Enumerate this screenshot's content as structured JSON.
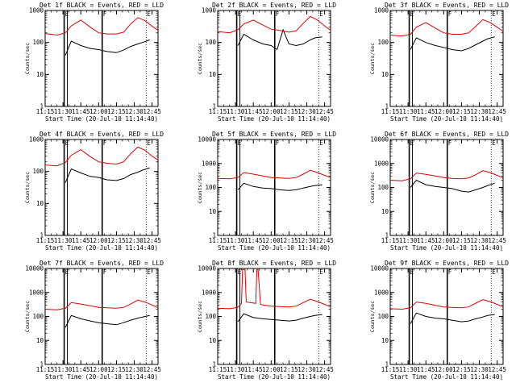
{
  "figure": {
    "x_tick_labels": [
      "11:15",
      "11:30",
      "11:45",
      "12:00",
      "12:15",
      "12:30",
      "12:45"
    ],
    "y_label": "Counts/sec",
    "x_label": "Start Time (20-Jul-10 11:14:40)",
    "series_colors": {
      "events": "#000000",
      "lld": "#e00000"
    },
    "marker_color": "#000000"
  },
  "chart_data": [
    {
      "type": "line",
      "title": "Det 1f BLACK = Events, RED = LLD",
      "xlabel": "Start Time (20-Jul-10 11:14:40)",
      "ylabel": "Counts/sec",
      "yscale": "log",
      "ylim": [
        1,
        1000
      ],
      "y_tick_labels": [
        "1",
        "10",
        "100",
        "1000"
      ],
      "xlim_minutes": [
        0,
        95
      ],
      "markers": [
        {
          "label": "E",
          "minute": 16
        },
        {
          "label": "F",
          "minute": 48
        },
        {
          "label": "E",
          "minute": 85
        }
      ],
      "series": [
        {
          "name": "BLACK = Events",
          "color": "#000000",
          "x": [
            17,
            22,
            30,
            38,
            45,
            52,
            60,
            66,
            72,
            78,
            82,
            88
          ],
          "y": [
            40,
            110,
            80,
            65,
            60,
            52,
            48,
            58,
            75,
            90,
            100,
            120
          ]
        },
        {
          "name": "RED = LLD",
          "color": "#e00000",
          "x": [
            0,
            10,
            17,
            22,
            30,
            38,
            45,
            52,
            60,
            66,
            72,
            78,
            84,
            90,
            95
          ],
          "y": [
            190,
            170,
            200,
            330,
            500,
            300,
            200,
            185,
            185,
            210,
            380,
            600,
            480,
            320,
            240
          ]
        }
      ]
    },
    {
      "type": "line",
      "title": "Det 2f BLACK = Events, RED = LLD",
      "xlabel": "Start Time (20-Jul-10 11:14:40)",
      "ylabel": "Counts/sec",
      "yscale": "log",
      "ylim": [
        1,
        1000
      ],
      "y_tick_labels": [
        "1",
        "10",
        "100",
        "1000"
      ],
      "xlim_minutes": [
        0,
        95
      ],
      "markers": [
        {
          "label": "E",
          "minute": 16
        },
        {
          "label": "F",
          "minute": 48
        },
        {
          "label": "E",
          "minute": 85
        }
      ],
      "series": [
        {
          "name": "BLACK = Events",
          "color": "#000000",
          "x": [
            17,
            22,
            30,
            38,
            45,
            50,
            55,
            60,
            66,
            72,
            78,
            82,
            88
          ],
          "y": [
            80,
            180,
            120,
            90,
            80,
            60,
            250,
            90,
            80,
            90,
            120,
            140,
            150
          ]
        },
        {
          "name": "RED = LLD",
          "color": "#e00000",
          "x": [
            0,
            10,
            17,
            22,
            30,
            38,
            45,
            52,
            60,
            66,
            72,
            78,
            84,
            90,
            95
          ],
          "y": [
            220,
            200,
            250,
            380,
            500,
            350,
            260,
            240,
            210,
            230,
            400,
            650,
            500,
            330,
            240
          ]
        }
      ]
    },
    {
      "type": "line",
      "title": "Det 3f BLACK = Events, RED = LLD",
      "xlabel": "Start Time (20-Jul-10 11:14:40)",
      "ylabel": "Counts/sec",
      "yscale": "log",
      "ylim": [
        1,
        1000
      ],
      "y_tick_labels": [
        "1",
        "10",
        "100",
        "1000"
      ],
      "xlim_minutes": [
        0,
        95
      ],
      "markers": [
        {
          "label": "E",
          "minute": 16
        },
        {
          "label": "F",
          "minute": 48
        },
        {
          "label": "E",
          "minute": 85
        }
      ],
      "series": [
        {
          "name": "BLACK = Events",
          "color": "#000000",
          "x": [
            17,
            22,
            30,
            38,
            45,
            52,
            60,
            66,
            72,
            78,
            82,
            88
          ],
          "y": [
            60,
            140,
            100,
            80,
            70,
            60,
            55,
            65,
            85,
            110,
            130,
            150
          ]
        },
        {
          "name": "RED = LLD",
          "color": "#e00000",
          "x": [
            0,
            10,
            17,
            22,
            30,
            38,
            45,
            52,
            60,
            66,
            72,
            78,
            84,
            90,
            95
          ],
          "y": [
            170,
            160,
            180,
            300,
            420,
            280,
            200,
            180,
            180,
            200,
            320,
            520,
            420,
            300,
            220
          ]
        }
      ]
    },
    {
      "type": "line",
      "title": "Det 4f BLACK = Events, RED = LLD",
      "xlabel": "Start Time (20-Jul-10 11:14:40)",
      "ylabel": "Counts/sec",
      "yscale": "log",
      "ylim": [
        1,
        1000
      ],
      "y_tick_labels": [
        "1",
        "10",
        "100",
        "1000"
      ],
      "xlim_minutes": [
        0,
        95
      ],
      "markers": [
        {
          "label": "E",
          "minute": 16
        },
        {
          "label": "F",
          "minute": 48
        },
        {
          "label": "E",
          "minute": 85
        }
      ],
      "series": [
        {
          "name": "BLACK = Events",
          "color": "#000000",
          "x": [
            17,
            22,
            30,
            38,
            45,
            52,
            60,
            66,
            72,
            78,
            82,
            88
          ],
          "y": [
            45,
            120,
            90,
            70,
            65,
            55,
            52,
            60,
            80,
            95,
            110,
            130
          ]
        },
        {
          "name": "RED = LLD",
          "color": "#e00000",
          "x": [
            0,
            10,
            17,
            22,
            30,
            38,
            45,
            52,
            60,
            66,
            72,
            78,
            84,
            90,
            95
          ],
          "y": [
            160,
            150,
            190,
            320,
            480,
            290,
            200,
            180,
            170,
            200,
            360,
            580,
            460,
            300,
            230
          ]
        }
      ]
    },
    {
      "type": "line",
      "title": "Det 5f BLACK = Events, RED = LLD",
      "xlabel": "Start Time (20-Jul-10 11:14:40)",
      "ylabel": "Counts/sec",
      "yscale": "log",
      "ylim": [
        1,
        10000
      ],
      "y_tick_labels": [
        "1",
        "10",
        "100",
        "1000",
        "10000"
      ],
      "xlim_minutes": [
        0,
        95
      ],
      "markers": [
        {
          "label": "E",
          "minute": 16
        },
        {
          "label": "F",
          "minute": 48
        },
        {
          "label": "E",
          "minute": 85
        }
      ],
      "series": [
        {
          "name": "BLACK = Events",
          "color": "#000000",
          "x": [
            17,
            22,
            30,
            38,
            45,
            52,
            60,
            66,
            72,
            78,
            82,
            88
          ],
          "y": [
            80,
            150,
            110,
            95,
            90,
            80,
            75,
            80,
            95,
            110,
            120,
            130
          ]
        },
        {
          "name": "RED = LLD",
          "color": "#e00000",
          "x": [
            0,
            10,
            17,
            22,
            30,
            38,
            45,
            52,
            60,
            66,
            72,
            78,
            84,
            90,
            95
          ],
          "y": [
            240,
            230,
            260,
            420,
            360,
            300,
            260,
            250,
            240,
            260,
            360,
            520,
            420,
            320,
            260
          ]
        }
      ]
    },
    {
      "type": "line",
      "title": "Det 6f BLACK = Events, RED = LLD",
      "xlabel": "Start Time (20-Jul-10 11:14:40)",
      "ylabel": "Counts/sec",
      "yscale": "log",
      "ylim": [
        1,
        10000
      ],
      "y_tick_labels": [
        "1",
        "10",
        "100",
        "1000",
        "10000"
      ],
      "xlim_minutes": [
        0,
        95
      ],
      "markers": [
        {
          "label": "E",
          "minute": 16
        },
        {
          "label": "F",
          "minute": 48
        },
        {
          "label": "E",
          "minute": 85
        }
      ],
      "series": [
        {
          "name": "BLACK = Events",
          "color": "#000000",
          "x": [
            17,
            22,
            30,
            38,
            45,
            52,
            60,
            66,
            72,
            78,
            82,
            88
          ],
          "y": [
            100,
            200,
            130,
            110,
            100,
            90,
            70,
            65,
            80,
            100,
            120,
            150
          ]
        },
        {
          "name": "RED = LLD",
          "color": "#e00000",
          "x": [
            0,
            10,
            17,
            22,
            30,
            38,
            45,
            52,
            60,
            66,
            72,
            78,
            84,
            90,
            95
          ],
          "y": [
            200,
            190,
            230,
            400,
            350,
            300,
            260,
            240,
            230,
            250,
            340,
            500,
            420,
            320,
            250
          ]
        }
      ]
    },
    {
      "type": "line",
      "title": "Det 7f BLACK = Events, RED = LLD",
      "xlabel": "Start Time (20-Jul-10 11:14:40)",
      "ylabel": "Counts/sec",
      "yscale": "log",
      "ylim": [
        1,
        10000
      ],
      "y_tick_labels": [
        "1",
        "10",
        "100",
        "1000",
        "10000"
      ],
      "xlim_minutes": [
        0,
        95
      ],
      "markers": [
        {
          "label": "E",
          "minute": 16
        },
        {
          "label": "F",
          "minute": 48
        },
        {
          "label": "E",
          "minute": 85
        }
      ],
      "series": [
        {
          "name": "BLACK = Events",
          "color": "#000000",
          "x": [
            17,
            22,
            30,
            38,
            45,
            52,
            60,
            66,
            72,
            78,
            82,
            88
          ],
          "y": [
            35,
            110,
            80,
            65,
            55,
            50,
            45,
            55,
            70,
            85,
            95,
            110
          ]
        },
        {
          "name": "RED = LLD",
          "color": "#e00000",
          "x": [
            0,
            10,
            17,
            22,
            30,
            38,
            45,
            52,
            60,
            66,
            72,
            78,
            84,
            90,
            95
          ],
          "y": [
            200,
            190,
            220,
            380,
            330,
            280,
            240,
            230,
            220,
            240,
            330,
            480,
            400,
            300,
            230
          ]
        }
      ]
    },
    {
      "type": "line",
      "title": "Det 8f BLACK = Events, RED = LLD",
      "xlabel": "Start Time (20-Jul-10 11:14:40)",
      "ylabel": "Counts/sec",
      "yscale": "log",
      "ylim": [
        1,
        10000
      ],
      "y_tick_labels": [
        "1",
        "10",
        "100",
        "1000",
        "10000"
      ],
      "xlim_minutes": [
        0,
        95
      ],
      "markers": [
        {
          "label": "E",
          "minute": 16
        },
        {
          "label": "F",
          "minute": 48
        },
        {
          "label": "E",
          "minute": 85
        }
      ],
      "series": [
        {
          "name": "BLACK = Events",
          "color": "#000000",
          "x": [
            17,
            22,
            30,
            38,
            45,
            52,
            60,
            66,
            72,
            78,
            82,
            88
          ],
          "y": [
            60,
            130,
            90,
            80,
            75,
            70,
            65,
            70,
            85,
            100,
            110,
            120
          ]
        },
        {
          "name": "RED = LLD",
          "color": "#e00000",
          "x": [
            0,
            10,
            17,
            20,
            21,
            23,
            24,
            32,
            33,
            34,
            36,
            38,
            45,
            52,
            60,
            66,
            72,
            78,
            84,
            90,
            95
          ],
          "y": [
            220,
            210,
            240,
            350,
            9000,
            9000,
            400,
            350,
            9000,
            9000,
            320,
            300,
            270,
            260,
            250,
            270,
            380,
            520,
            420,
            320,
            250
          ]
        }
      ]
    },
    {
      "type": "line",
      "title": "Det 9f BLACK = Events, RED = LLD",
      "xlabel": "Start Time (20-Jul-10 11:14:40)",
      "ylabel": "Counts/sec",
      "yscale": "log",
      "ylim": [
        1,
        10000
      ],
      "y_tick_labels": [
        "1",
        "10",
        "100",
        "1000",
        "10000"
      ],
      "xlim_minutes": [
        0,
        95
      ],
      "markers": [
        {
          "label": "E",
          "minute": 16
        },
        {
          "label": "F",
          "minute": 48
        },
        {
          "label": "E",
          "minute": 85
        }
      ],
      "series": [
        {
          "name": "BLACK = Events",
          "color": "#000000",
          "x": [
            17,
            22,
            30,
            38,
            45,
            52,
            60,
            66,
            72,
            78,
            82,
            88
          ],
          "y": [
            50,
            140,
            100,
            85,
            80,
            70,
            60,
            65,
            80,
            95,
            110,
            120
          ]
        },
        {
          "name": "RED = LLD",
          "color": "#e00000",
          "x": [
            0,
            10,
            17,
            22,
            30,
            38,
            45,
            52,
            60,
            66,
            72,
            78,
            84,
            90,
            95
          ],
          "y": [
            210,
            200,
            230,
            400,
            350,
            290,
            250,
            240,
            230,
            250,
            360,
            500,
            420,
            320,
            250
          ]
        }
      ]
    }
  ]
}
